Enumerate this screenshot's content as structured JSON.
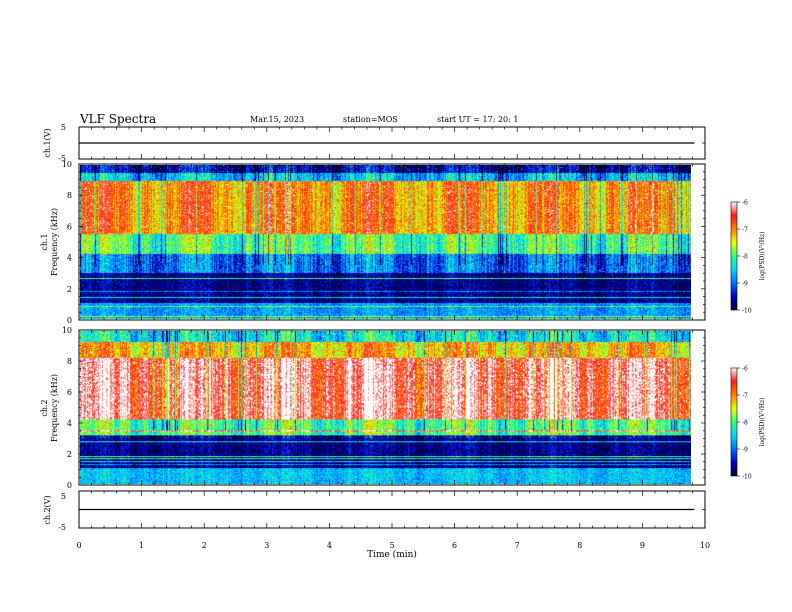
{
  "header": {
    "title": "VLF Spectra",
    "date": "Mar.15, 2023",
    "station": "station=MOS",
    "start": "start  UT  =   17: 20: 1"
  },
  "chart_data": [
    {
      "type": "line",
      "name": "ch1-waveform",
      "ylabel": "ch.1(V)",
      "ylim": [
        -5,
        5
      ],
      "yticks": [
        "5",
        "-5"
      ],
      "x": [
        0,
        9.83
      ],
      "y": [
        0,
        0
      ]
    },
    {
      "type": "heatmap",
      "name": "ch1-spectrogram",
      "ylabel": "ch.1\nFrequency (kHz)",
      "ylim": [
        0,
        10
      ],
      "yticks": [
        "0",
        "2",
        "4",
        "6",
        "8",
        "10"
      ],
      "xlim": [
        0,
        10
      ],
      "data_x_extent": [
        0,
        9.83
      ],
      "band_model": [
        {
          "freq_from": 9.5,
          "freq_to": 10,
          "log_psd": -9.6
        },
        {
          "freq_from": 9.0,
          "freq_to": 9.5,
          "log_psd": -8.6
        },
        {
          "freq_from": 5.5,
          "freq_to": 9.0,
          "log_psd": -7.0
        },
        {
          "freq_from": 4.2,
          "freq_to": 5.5,
          "log_psd": -8.0
        },
        {
          "freq_from": 3.0,
          "freq_to": 4.2,
          "log_psd": -9.0
        },
        {
          "freq_from": 1.0,
          "freq_to": 3.0,
          "log_psd": -9.7
        },
        {
          "freq_from": 0,
          "freq_to": 1.0,
          "log_psd": -8.8
        }
      ],
      "colorbar": {
        "label": "log(PSD)(V²/Hz)",
        "range": [
          -10,
          -6
        ],
        "ticks": [
          "-6",
          "-7",
          "-8",
          "-9",
          "-10"
        ]
      }
    },
    {
      "type": "heatmap",
      "name": "ch2-spectrogram",
      "ylabel": "ch.2\nFrequency (kHz)",
      "ylim": [
        0,
        10
      ],
      "yticks": [
        "0",
        "2",
        "4",
        "6",
        "8",
        "10"
      ],
      "xlim": [
        0,
        10
      ],
      "data_x_extent": [
        0,
        9.83
      ],
      "band_model": [
        {
          "freq_from": 9.3,
          "freq_to": 10,
          "log_psd": -8.4
        },
        {
          "freq_from": 8.3,
          "freq_to": 9.3,
          "log_psd": -7.2
        },
        {
          "freq_from": 4.2,
          "freq_to": 8.3,
          "log_psd": -6.3
        },
        {
          "freq_from": 3.2,
          "freq_to": 4.2,
          "log_psd": -8.0
        },
        {
          "freq_from": 1.0,
          "freq_to": 3.2,
          "log_psd": -9.7
        },
        {
          "freq_from": 0,
          "freq_to": 1.0,
          "log_psd": -8.6
        }
      ],
      "colorbar": {
        "label": "log(PSD)(V²/Hz)",
        "range": [
          -10,
          -6
        ],
        "ticks": [
          "-6",
          "-7",
          "-8",
          "-9",
          "-10"
        ]
      }
    },
    {
      "type": "line",
      "name": "ch2-waveform",
      "ylabel": "ch.2(V)",
      "ylim": [
        -5,
        5
      ],
      "yticks": [
        "5",
        "-5"
      ],
      "x": [
        0,
        9.83
      ],
      "y": [
        0,
        0
      ]
    }
  ],
  "x_axis": {
    "label": "Time (min)",
    "range": [
      0,
      10
    ],
    "ticks": [
      "0",
      "1",
      "2",
      "3",
      "4",
      "5",
      "6",
      "7",
      "8",
      "9",
      "10"
    ]
  },
  "colors": {
    "colormap": [
      "#000030",
      "#0000c8",
      "#0070ff",
      "#00d8ff",
      "#30ff80",
      "#e8ff00",
      "#ff8000",
      "#ff1a1a",
      "#ffffff"
    ]
  }
}
